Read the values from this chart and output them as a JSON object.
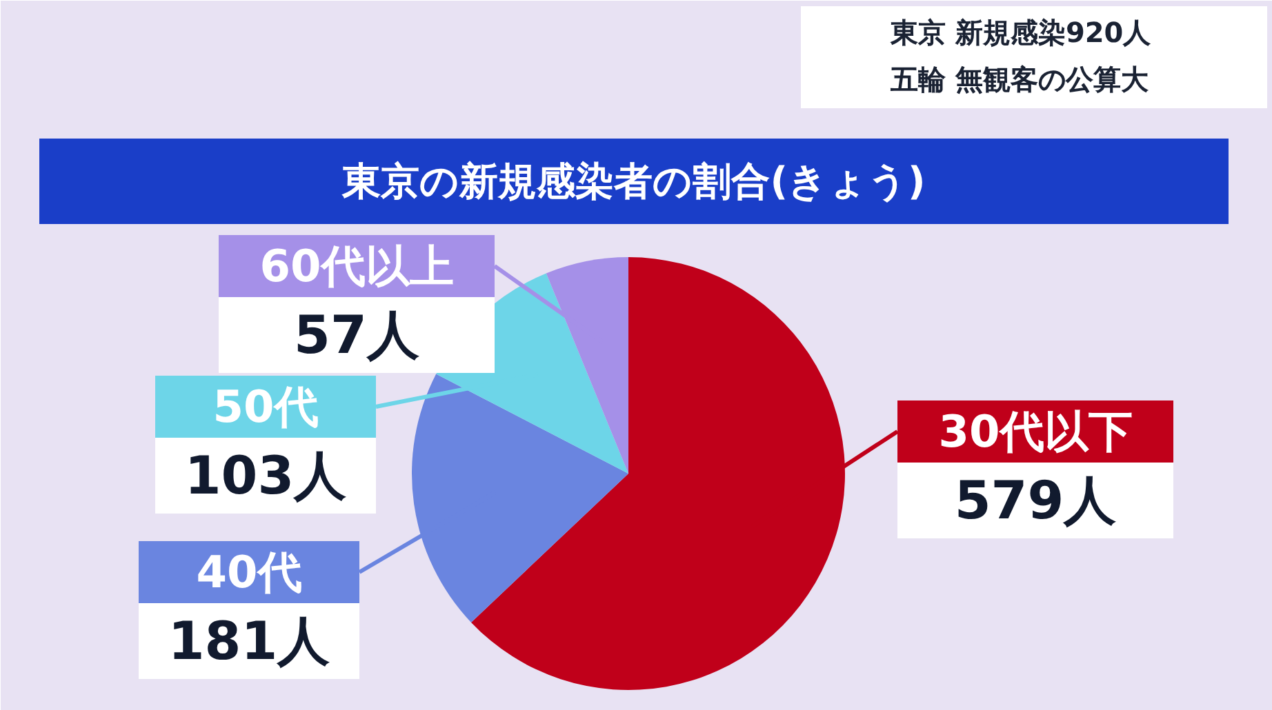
{
  "chart_data": {
    "type": "pie",
    "title": "東京の新規感染者の割合(きょう)",
    "categories": [
      "30代以下",
      "40代",
      "50代",
      "60代以上"
    ],
    "values": [
      579,
      181,
      103,
      57
    ],
    "value_labels": [
      "579人",
      "181人",
      "103人",
      "57人"
    ],
    "colors": [
      "#c0001a",
      "#6a85e0",
      "#6dd5e8",
      "#a590e8"
    ],
    "annotations": [
      "東京 新規感染920人",
      "五輪 無観客の公算大"
    ]
  }
}
